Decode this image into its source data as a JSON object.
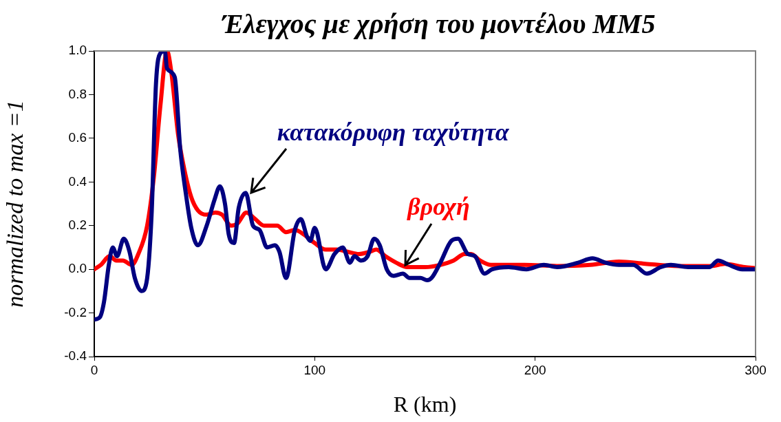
{
  "chart_data": {
    "type": "line",
    "title": "Έλεγχος με χρήση του μοντέλου MM5",
    "xlabel": "R (km)",
    "ylabel": "normalized to max =1",
    "xlim": [
      0,
      300
    ],
    "xticks": [
      0,
      100,
      200,
      300
    ],
    "ylim": [
      -0.4,
      1.0
    ],
    "yticks": [
      {
        "value": -0.4,
        "label": "-0.4"
      },
      {
        "value": -0.2,
        "label": "-0.2"
      },
      {
        "value": 0,
        "label": "0.0"
      },
      {
        "value": 0.2,
        "label": "0.2"
      },
      {
        "value": 0.4,
        "label": "0.4"
      },
      {
        "value": 0.6,
        "label": "0.6"
      },
      {
        "value": 0.8,
        "label": "0.8"
      },
      {
        "value": 1.0,
        "label": "1.0"
      }
    ],
    "grid": false,
    "legend": false,
    "marker": "none",
    "line_style": "solid",
    "series": [
      {
        "color": "#000080",
        "x": [
          0,
          2.5,
          4.4,
          6.6,
          8.4,
          10.3,
          13.4,
          16,
          18.4,
          21.5,
          23.7,
          26,
          28,
          30,
          32,
          33,
          36.5,
          39,
          41.5,
          44,
          47,
          51,
          54.6,
          57,
          59.3,
          61,
          63.4,
          65.5,
          68.7,
          72,
          75,
          78.4,
          82,
          84,
          87,
          91,
          93.7,
          96.5,
          98,
          100,
          105,
          109,
          112.7,
          116,
          118,
          121,
          124,
          127,
          129.5,
          132.7,
          135.8,
          140,
          143,
          148,
          151,
          153,
          157,
          162,
          165,
          169.5,
          172.7,
          177,
          180.5,
          188,
          196,
          204,
          210,
          219.5,
          226,
          232,
          238,
          244.5,
          250.7,
          257,
          261.6,
          269.4,
          279,
          283,
          288,
          294,
          300
        ],
        "values": [
          -0.23,
          -0.22,
          -0.15,
          0.02,
          0.1,
          0.06,
          0.14,
          0.08,
          -0.04,
          -0.1,
          -0.06,
          0.25,
          0.85,
          0.99,
          1.0,
          0.92,
          0.88,
          0.55,
          0.35,
          0.19,
          0.11,
          0.2,
          0.32,
          0.38,
          0.3,
          0.16,
          0.12,
          0.28,
          0.35,
          0.2,
          0.18,
          0.1,
          0.11,
          0.08,
          -0.04,
          0.18,
          0.23,
          0.15,
          0.13,
          0.19,
          0.0,
          0.07,
          0.1,
          0.03,
          0.06,
          0.04,
          0.06,
          0.14,
          0.11,
          0.0,
          -0.03,
          -0.02,
          -0.04,
          -0.04,
          -0.05,
          -0.04,
          0.03,
          0.13,
          0.14,
          0.07,
          0.06,
          -0.02,
          0.0,
          0.01,
          0.0,
          0.02,
          0.01,
          0.03,
          0.05,
          0.03,
          0.02,
          0.02,
          -0.02,
          0.01,
          0.02,
          0.01,
          0.01,
          0.04,
          0.02,
          0.0,
          0.0
        ]
      },
      {
        "color": "#ff0000",
        "x": [
          0,
          3,
          7,
          10,
          13,
          17,
          20,
          24,
          27,
          30,
          33,
          35,
          38,
          41,
          44,
          47,
          51,
          55,
          58,
          62,
          65,
          69,
          73,
          77,
          83,
          87,
          91,
          95,
          100,
          105,
          110,
          115,
          120,
          125,
          128,
          132,
          137,
          142,
          150,
          157,
          163,
          168,
          171,
          175,
          180,
          195,
          210,
          225,
          238,
          250,
          265,
          280,
          286,
          295,
          300
        ],
        "values": [
          0.0,
          0.02,
          0.06,
          0.04,
          0.04,
          0.02,
          0.07,
          0.2,
          0.42,
          0.75,
          1.0,
          0.9,
          0.62,
          0.45,
          0.33,
          0.27,
          0.25,
          0.26,
          0.25,
          0.2,
          0.21,
          0.26,
          0.23,
          0.2,
          0.2,
          0.17,
          0.18,
          0.16,
          0.12,
          0.09,
          0.09,
          0.08,
          0.07,
          0.08,
          0.09,
          0.06,
          0.03,
          0.01,
          0.01,
          0.02,
          0.04,
          0.07,
          0.07,
          0.04,
          0.02,
          0.02,
          0.015,
          0.02,
          0.035,
          0.025,
          0.015,
          0.015,
          0.025,
          0.01,
          0.005
        ]
      }
    ],
    "annotations": [
      {
        "text": "κατακόρυφη ταχύτητα",
        "x": 70,
        "y": 0.33
      },
      {
        "text": "βροχή",
        "x": 140,
        "y": 0.0
      }
    ]
  }
}
